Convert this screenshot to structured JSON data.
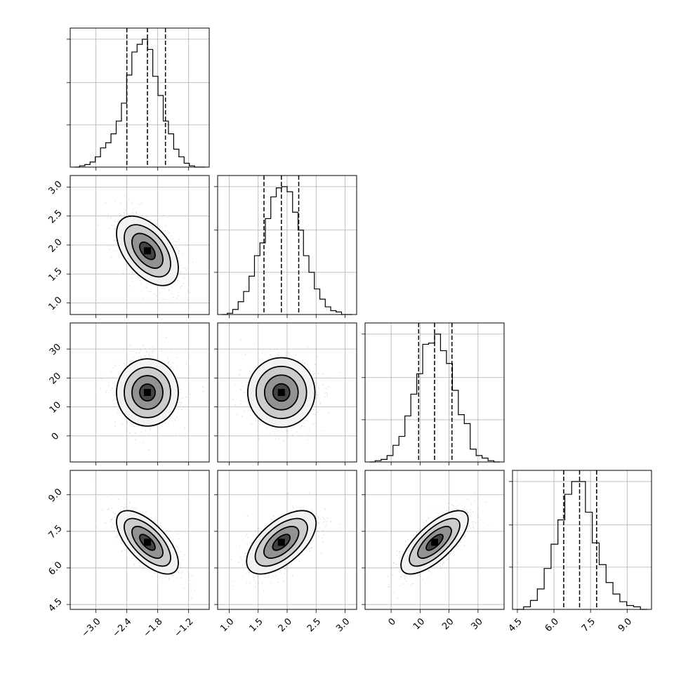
{
  "chart_data": {
    "type": "corner",
    "grid": true,
    "n_params": 4,
    "params": [
      {
        "range": [
          -3.5,
          -0.8
        ],
        "ticks": [
          -3.0,
          -2.4,
          -1.8,
          -1.2
        ],
        "tick_labels": [
          "−3.0",
          "−2.4",
          "−1.8",
          "−1.2"
        ],
        "quantiles": [
          -2.4,
          -2.0,
          -1.65
        ],
        "mean": -2.0,
        "sd": 0.3
      },
      {
        "range": [
          0.8,
          3.2
        ],
        "ticks": [
          1.0,
          1.5,
          2.0,
          2.5,
          3.0
        ],
        "tick_labels": [
          "1.0",
          "1.5",
          "2.0",
          "2.5",
          "3.0"
        ],
        "quantiles": [
          1.6,
          1.9,
          2.2
        ],
        "mean": 1.9,
        "sd": 0.3
      },
      {
        "range": [
          -9,
          39
        ],
        "ticks": [
          0,
          10,
          20,
          30
        ],
        "tick_labels": [
          "0",
          "10",
          "20",
          "30"
        ],
        "quantiles": [
          9.5,
          15.0,
          21.0
        ],
        "mean": 15.0,
        "sd": 5.8
      },
      {
        "range": [
          4.3,
          10.0
        ],
        "ticks": [
          4.5,
          6.0,
          7.5,
          9.0
        ],
        "tick_labels": [
          "4.5",
          "6.0",
          "7.5",
          "9.0"
        ],
        "quantiles": [
          6.4,
          7.05,
          7.75
        ],
        "mean": 7.05,
        "sd": 0.65
      }
    ],
    "correlations": [
      [
        0,
        1,
        -0.5
      ],
      [
        0,
        2,
        0.0
      ],
      [
        0,
        3,
        -0.65
      ],
      [
        1,
        2,
        0.0
      ],
      [
        1,
        3,
        0.6
      ],
      [
        2,
        3,
        0.72
      ]
    ],
    "hist_1d": [
      [
        0.0,
        0.01,
        0.02,
        0.04,
        0.08,
        0.15,
        0.19,
        0.26,
        0.36,
        0.5,
        0.72,
        0.9,
        0.96,
        1.0,
        0.92,
        0.71,
        0.56,
        0.36,
        0.26,
        0.14,
        0.08,
        0.03,
        0.01,
        0.0,
        0.0
      ],
      [
        0.0,
        0.01,
        0.04,
        0.1,
        0.18,
        0.3,
        0.46,
        0.56,
        0.75,
        0.92,
        0.99,
        1.0,
        0.96,
        0.8,
        0.66,
        0.46,
        0.33,
        0.2,
        0.12,
        0.06,
        0.03,
        0.02,
        0.0,
        0.0
      ],
      [
        0.0,
        0.01,
        0.02,
        0.05,
        0.13,
        0.2,
        0.36,
        0.53,
        0.69,
        0.92,
        0.93,
        1.0,
        0.87,
        0.77,
        0.56,
        0.37,
        0.3,
        0.1,
        0.05,
        0.03,
        0.01,
        0.0
      ],
      [
        0.0,
        0.02,
        0.07,
        0.16,
        0.32,
        0.51,
        0.7,
        0.9,
        1.0,
        1.0,
        0.76,
        0.52,
        0.35,
        0.21,
        0.12,
        0.06,
        0.03,
        0.02,
        0.0
      ]
    ]
  }
}
